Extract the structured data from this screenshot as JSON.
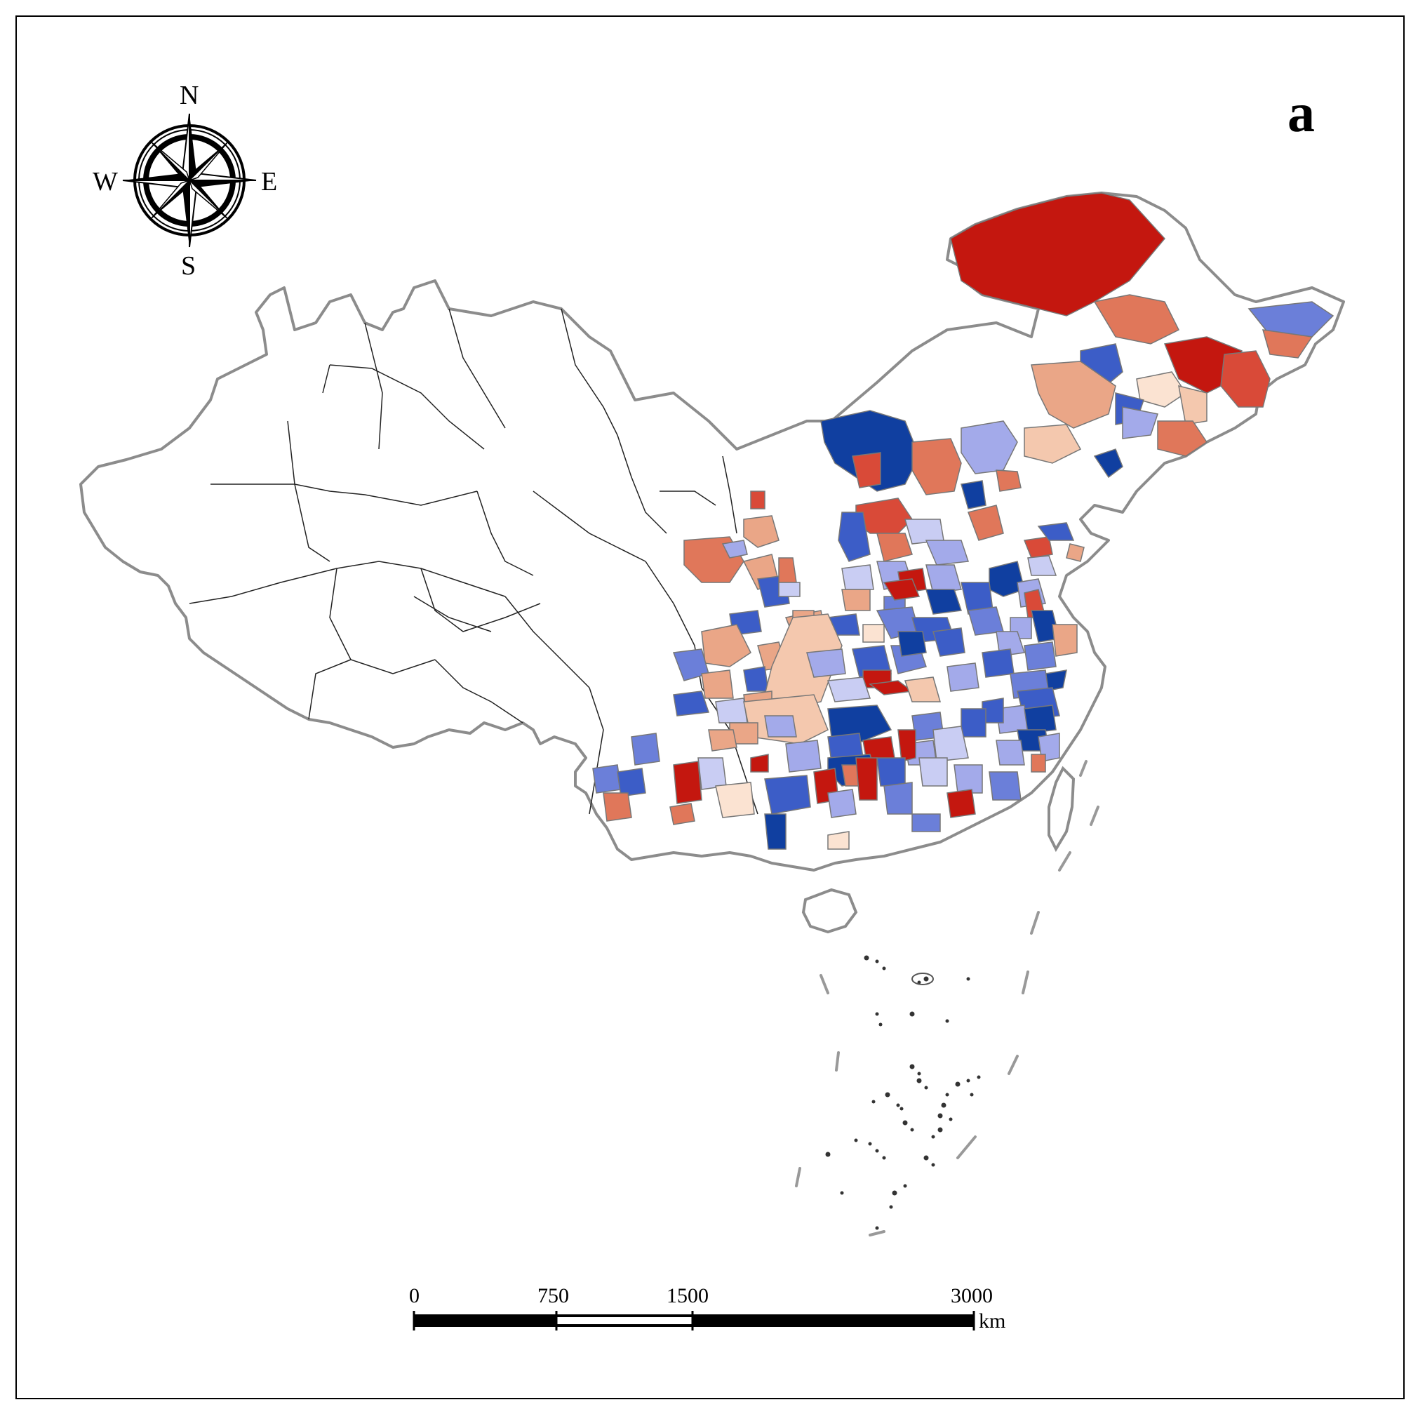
{
  "panel_label": "a",
  "compass": {
    "north": "N",
    "south": "S",
    "east": "E",
    "west": "W"
  },
  "scale_bar": {
    "ticks": [
      "0",
      "750",
      "1500",
      "3000"
    ],
    "unit": "km"
  },
  "colors": {
    "deep_red": "#c4170f",
    "red": "#d94a38",
    "salmon": "#e0775a",
    "light_salmon": "#eaa687",
    "peach": "#f4c8ae",
    "pale_peach": "#fbe3d2",
    "pale_blue": "#c9cdf3",
    "light_blue": "#a3aaea",
    "mid_blue": "#6b7fd9",
    "blue": "#3c5dc7",
    "deep_blue": "#103fa0",
    "no_data": "#ffffff",
    "national_border": "#8c8c8c",
    "internal_border": "#222222"
  }
}
